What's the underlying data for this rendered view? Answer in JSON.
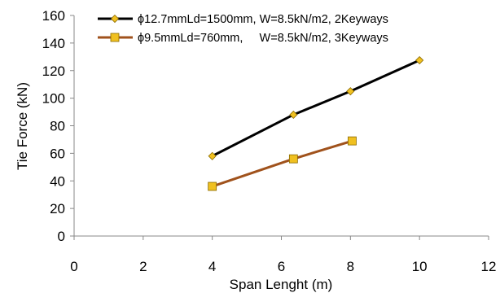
{
  "chart_data": {
    "type": "line",
    "xlabel": "Span Lenght (m)",
    "ylabel": "Tie Force (kN)",
    "xlim": [
      0,
      12
    ],
    "ylim": [
      0,
      160
    ],
    "xticks": [
      0,
      2,
      4,
      6,
      8,
      10,
      12
    ],
    "yticks": [
      0,
      20,
      40,
      60,
      80,
      100,
      120,
      140,
      160
    ],
    "grid": false,
    "legend_position": "top-left",
    "series": [
      {
        "name": "ϕ12.7mmLd=1500mm, W=8.5kN/m2, 2Keyways",
        "color": "#000000",
        "marker": "diamond",
        "marker_color": "#f0c020",
        "x": [
          4,
          6.35,
          8,
          10
        ],
        "y": [
          58,
          88,
          105,
          127.5
        ]
      },
      {
        "name": "ϕ9.5mmLd=760mm,     W=8.5kN/m2, 3Keyways",
        "color": "#a0521c",
        "marker": "square",
        "marker_color": "#f0c020",
        "x": [
          4,
          6.35,
          8.05
        ],
        "y": [
          36,
          56,
          69
        ]
      }
    ]
  }
}
